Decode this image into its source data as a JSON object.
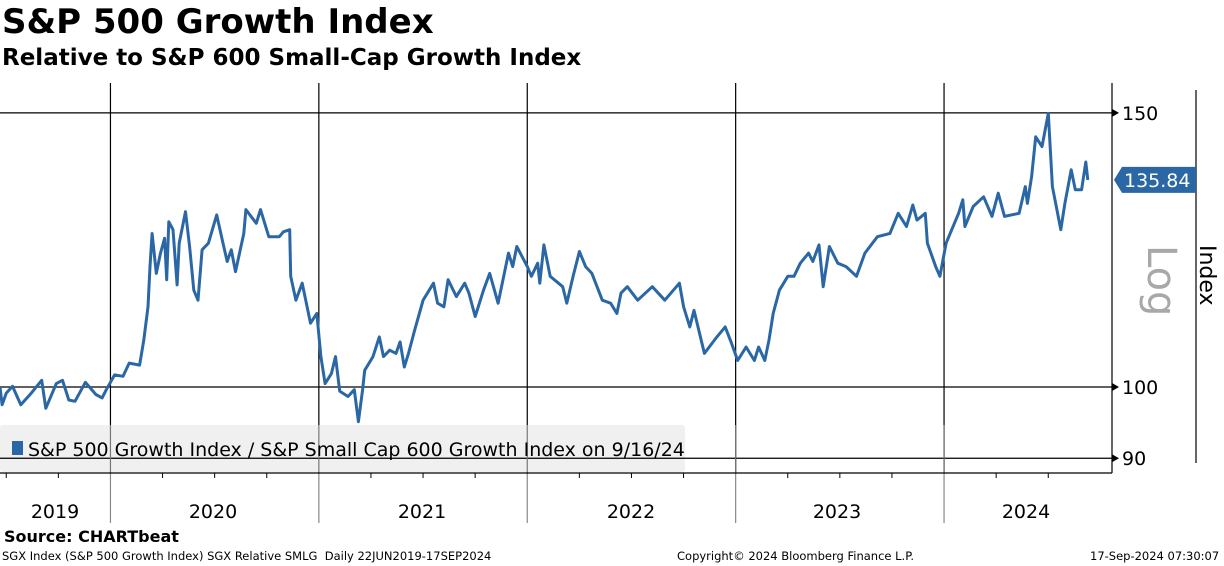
{
  "header": {
    "title": "S&P 500 Growth Index",
    "subtitle": "Relative to S&P 600 Small-Cap Growth Index"
  },
  "footer": {
    "source": "Source: CHARTbeat",
    "description": "SGX Index (S&P 500 Growth Index) SGX Relative SMLG  Daily 22JUN2019-17SEP2024",
    "copyright": "Copyright© 2024 Bloomberg Finance L.P.",
    "timestamp": "17-Sep-2024 07:30:07"
  },
  "colors": {
    "series": "#2b67a5",
    "legend_bg": "#f0f0f0"
  },
  "chart_data": {
    "type": "line",
    "title": "S&P 500 Growth Index",
    "subtitle": "Relative to S&P 600 Small-Cap Growth Index",
    "ylabel": "Index",
    "yscale_label": "Log",
    "yscale": "log",
    "ylim": [
      88,
      155
    ],
    "yticks": [
      "150",
      "100",
      "90"
    ],
    "ytick_values": [
      150,
      100,
      90
    ],
    "xlim": [
      2019.47,
      2024.75
    ],
    "xticks": [
      "2019",
      "2020",
      "2021",
      "2022",
      "2023",
      "2024"
    ],
    "grid": true,
    "legend_position": "bottom-left",
    "last_value_label": "135.84",
    "series": [
      {
        "name": "S&P 500 Growth Index / S&P Small Cap 600 Growth Index on 9/16/24",
        "points": [
          [
            2019.47,
            100.0
          ],
          [
            2019.48,
            97.4
          ],
          [
            2019.5,
            99.1
          ],
          [
            2019.53,
            100.1
          ],
          [
            2019.57,
            97.4
          ],
          [
            2019.62,
            99.1
          ],
          [
            2019.67,
            101.0
          ],
          [
            2019.69,
            96.9
          ],
          [
            2019.74,
            100.5
          ],
          [
            2019.77,
            101.0
          ],
          [
            2019.8,
            98.1
          ],
          [
            2019.83,
            97.9
          ],
          [
            2019.88,
            100.7
          ],
          [
            2019.93,
            98.9
          ],
          [
            2019.96,
            98.4
          ],
          [
            2019.98,
            99.6
          ],
          [
            2020.02,
            101.8
          ],
          [
            2020.06,
            101.6
          ],
          [
            2020.09,
            103.6
          ],
          [
            2020.14,
            103.3
          ],
          [
            2020.16,
            107.2
          ],
          [
            2020.18,
            112.6
          ],
          [
            2020.19,
            119.5
          ],
          [
            2020.2,
            125.5
          ],
          [
            2020.22,
            118.3
          ],
          [
            2020.24,
            121.9
          ],
          [
            2020.26,
            124.6
          ],
          [
            2020.27,
            117.2
          ],
          [
            2020.28,
            127.7
          ],
          [
            2020.3,
            126.2
          ],
          [
            2020.32,
            116.3
          ],
          [
            2020.33,
            123.7
          ],
          [
            2020.36,
            129.6
          ],
          [
            2020.38,
            123.1
          ],
          [
            2020.4,
            115.4
          ],
          [
            2020.42,
            113.7
          ],
          [
            2020.44,
            122.5
          ],
          [
            2020.47,
            123.7
          ],
          [
            2020.51,
            129.0
          ],
          [
            2020.54,
            123.7
          ],
          [
            2020.56,
            120.4
          ],
          [
            2020.58,
            122.5
          ],
          [
            2020.6,
            118.6
          ],
          [
            2020.64,
            125.5
          ],
          [
            2020.65,
            130.0
          ],
          [
            2020.7,
            127.4
          ],
          [
            2020.72,
            130.0
          ],
          [
            2020.76,
            124.9
          ],
          [
            2020.81,
            124.9
          ],
          [
            2020.83,
            125.8
          ],
          [
            2020.86,
            126.2
          ],
          [
            2020.865,
            117.8
          ],
          [
            2020.89,
            113.7
          ],
          [
            2020.92,
            116.6
          ],
          [
            2020.96,
            109.9
          ],
          [
            2020.99,
            111.5
          ],
          [
            2021.01,
            104.6
          ],
          [
            2021.03,
            100.5
          ],
          [
            2021.06,
            102.0
          ],
          [
            2021.08,
            104.6
          ],
          [
            2021.1,
            99.4
          ],
          [
            2021.14,
            98.6
          ],
          [
            2021.17,
            99.6
          ],
          [
            2021.19,
            95.0
          ],
          [
            2021.21,
            99.6
          ],
          [
            2021.22,
            102.5
          ],
          [
            2021.26,
            104.6
          ],
          [
            2021.29,
            107.7
          ],
          [
            2021.31,
            104.6
          ],
          [
            2021.34,
            105.6
          ],
          [
            2021.37,
            105.1
          ],
          [
            2021.39,
            106.9
          ],
          [
            2021.41,
            103.0
          ],
          [
            2021.43,
            105.1
          ],
          [
            2021.46,
            108.8
          ],
          [
            2021.5,
            113.7
          ],
          [
            2021.55,
            116.6
          ],
          [
            2021.57,
            113.2
          ],
          [
            2021.6,
            112.6
          ],
          [
            2021.62,
            117.2
          ],
          [
            2021.66,
            114.3
          ],
          [
            2021.7,
            116.6
          ],
          [
            2021.72,
            114.9
          ],
          [
            2021.75,
            111.0
          ],
          [
            2021.79,
            115.4
          ],
          [
            2021.82,
            118.3
          ],
          [
            2021.86,
            113.2
          ],
          [
            2021.89,
            118.3
          ],
          [
            2021.91,
            121.9
          ],
          [
            2021.93,
            119.5
          ],
          [
            2021.95,
            123.1
          ],
          [
            2022.0,
            119.5
          ],
          [
            2022.02,
            117.8
          ],
          [
            2022.05,
            120.1
          ],
          [
            2022.06,
            116.6
          ],
          [
            2022.08,
            123.4
          ],
          [
            2022.11,
            117.8
          ],
          [
            2022.17,
            116.0
          ],
          [
            2022.19,
            113.2
          ],
          [
            2022.22,
            117.8
          ],
          [
            2022.25,
            122.2
          ],
          [
            2022.28,
            119.5
          ],
          [
            2022.31,
            118.3
          ],
          [
            2022.36,
            113.7
          ],
          [
            2022.4,
            113.2
          ],
          [
            2022.43,
            111.5
          ],
          [
            2022.45,
            114.9
          ],
          [
            2022.48,
            116.0
          ],
          [
            2022.53,
            113.7
          ],
          [
            2022.6,
            116.0
          ],
          [
            2022.66,
            113.7
          ],
          [
            2022.73,
            116.6
          ],
          [
            2022.75,
            112.6
          ],
          [
            2022.78,
            109.3
          ],
          [
            2022.8,
            112.0
          ],
          [
            2022.85,
            105.1
          ],
          [
            2022.91,
            107.7
          ],
          [
            2022.95,
            109.3
          ],
          [
            2022.98,
            106.7
          ],
          [
            2023.01,
            104.0
          ],
          [
            2023.05,
            106.1
          ],
          [
            2023.09,
            104.0
          ],
          [
            2023.11,
            106.1
          ],
          [
            2023.14,
            104.0
          ],
          [
            2023.16,
            107.2
          ],
          [
            2023.18,
            111.5
          ],
          [
            2023.21,
            115.4
          ],
          [
            2023.25,
            117.8
          ],
          [
            2023.28,
            117.8
          ],
          [
            2023.31,
            120.1
          ],
          [
            2023.35,
            121.9
          ],
          [
            2023.37,
            120.4
          ],
          [
            2023.4,
            123.4
          ],
          [
            2023.42,
            116.0
          ],
          [
            2023.45,
            123.1
          ],
          [
            2023.49,
            120.1
          ],
          [
            2023.53,
            119.5
          ],
          [
            2023.58,
            117.8
          ],
          [
            2023.62,
            121.9
          ],
          [
            2023.68,
            124.9
          ],
          [
            2023.74,
            125.5
          ],
          [
            2023.78,
            129.3
          ],
          [
            2023.82,
            126.8
          ],
          [
            2023.85,
            130.9
          ],
          [
            2023.87,
            128.0
          ],
          [
            2023.91,
            129.3
          ],
          [
            2023.92,
            123.7
          ],
          [
            2023.96,
            119.5
          ],
          [
            2023.98,
            117.8
          ],
          [
            2024.01,
            123.7
          ],
          [
            2024.07,
            129.3
          ],
          [
            2024.09,
            131.9
          ],
          [
            2024.1,
            126.8
          ],
          [
            2024.14,
            130.6
          ],
          [
            2024.19,
            132.5
          ],
          [
            2024.23,
            128.7
          ],
          [
            2024.26,
            133.2
          ],
          [
            2024.29,
            128.7
          ],
          [
            2024.36,
            129.3
          ],
          [
            2024.39,
            134.5
          ],
          [
            2024.4,
            131.2
          ],
          [
            2024.42,
            136.5
          ],
          [
            2024.44,
            144.8
          ],
          [
            2024.47,
            142.7
          ],
          [
            2024.5,
            149.9
          ],
          [
            2024.52,
            134.5
          ],
          [
            2024.56,
            126.2
          ],
          [
            2024.58,
            131.2
          ],
          [
            2024.61,
            137.9
          ],
          [
            2024.63,
            133.9
          ],
          [
            2024.66,
            133.9
          ],
          [
            2024.68,
            139.5
          ],
          [
            2024.69,
            135.84
          ]
        ]
      }
    ]
  }
}
